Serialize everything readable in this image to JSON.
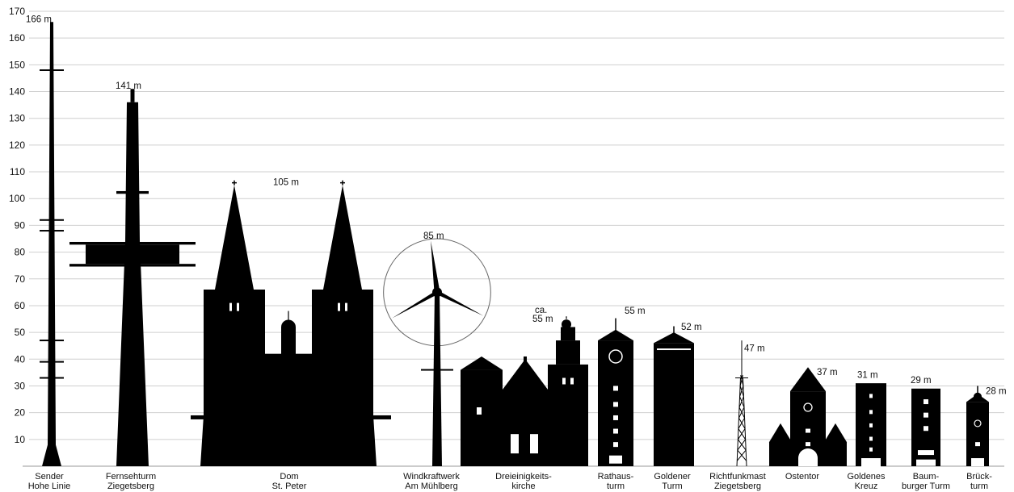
{
  "chart_data": {
    "type": "bar",
    "title": "",
    "xlabel": "",
    "ylabel": "",
    "ylim": [
      0,
      170
    ],
    "yticks": [
      10,
      20,
      30,
      40,
      50,
      60,
      70,
      80,
      90,
      100,
      110,
      120,
      130,
      140,
      150,
      160,
      170
    ],
    "grid": true,
    "ink_color": "#000000",
    "buildings": [
      {
        "id": "sender",
        "name_lines": [
          "Sender",
          "Hohe Linie"
        ],
        "height": 166,
        "label": "166 m",
        "icon": "radio-mast-silhouette"
      },
      {
        "id": "fernsehturm",
        "name_lines": [
          "Fernsehturm",
          "Ziegetsberg"
        ],
        "height": 141,
        "label": "141 m",
        "icon": "tv-tower-silhouette"
      },
      {
        "id": "dom",
        "name_lines": [
          "Dom",
          "St. Peter"
        ],
        "height": 105,
        "label": "105 m",
        "icon": "cathedral-silhouette"
      },
      {
        "id": "windkraft",
        "name_lines": [
          "Windkraftwerk",
          "Am Mühlberg"
        ],
        "height": 85,
        "label": "85 m",
        "icon": "wind-turbine-silhouette"
      },
      {
        "id": "dreieinigkeit",
        "name_lines": [
          "Dreieinigkeits-",
          "kirche"
        ],
        "height": 55,
        "label": "55 m",
        "label_prefix": "ca.",
        "icon": "church-silhouette"
      },
      {
        "id": "rathaus",
        "name_lines": [
          "Rathaus-",
          "turm"
        ],
        "height": 55,
        "label": "55 m",
        "icon": "tower-silhouette"
      },
      {
        "id": "goldener",
        "name_lines": [
          "Goldener",
          "Turm"
        ],
        "height": 52,
        "label": "52 m",
        "icon": "tower-silhouette"
      },
      {
        "id": "richtfunk",
        "name_lines": [
          "Richtfunkmast",
          "Ziegetsberg"
        ],
        "height": 47,
        "label": "47 m",
        "icon": "lattice-mast-silhouette"
      },
      {
        "id": "ostentor",
        "name_lines": [
          "Ostentor"
        ],
        "height": 37,
        "label": "37 m",
        "icon": "gate-tower-silhouette"
      },
      {
        "id": "goldeneskreuz",
        "name_lines": [
          "Goldenes",
          "Kreuz"
        ],
        "height": 31,
        "label": "31 m",
        "icon": "tower-silhouette"
      },
      {
        "id": "baumburger",
        "name_lines": [
          "Baum-",
          "burger Turm"
        ],
        "height": 29,
        "label": "29 m",
        "icon": "tower-silhouette"
      },
      {
        "id": "brueckturm",
        "name_lines": [
          "Brück-",
          "turm"
        ],
        "height": 28,
        "label": "28 m",
        "icon": "bridge-tower-silhouette"
      }
    ]
  }
}
